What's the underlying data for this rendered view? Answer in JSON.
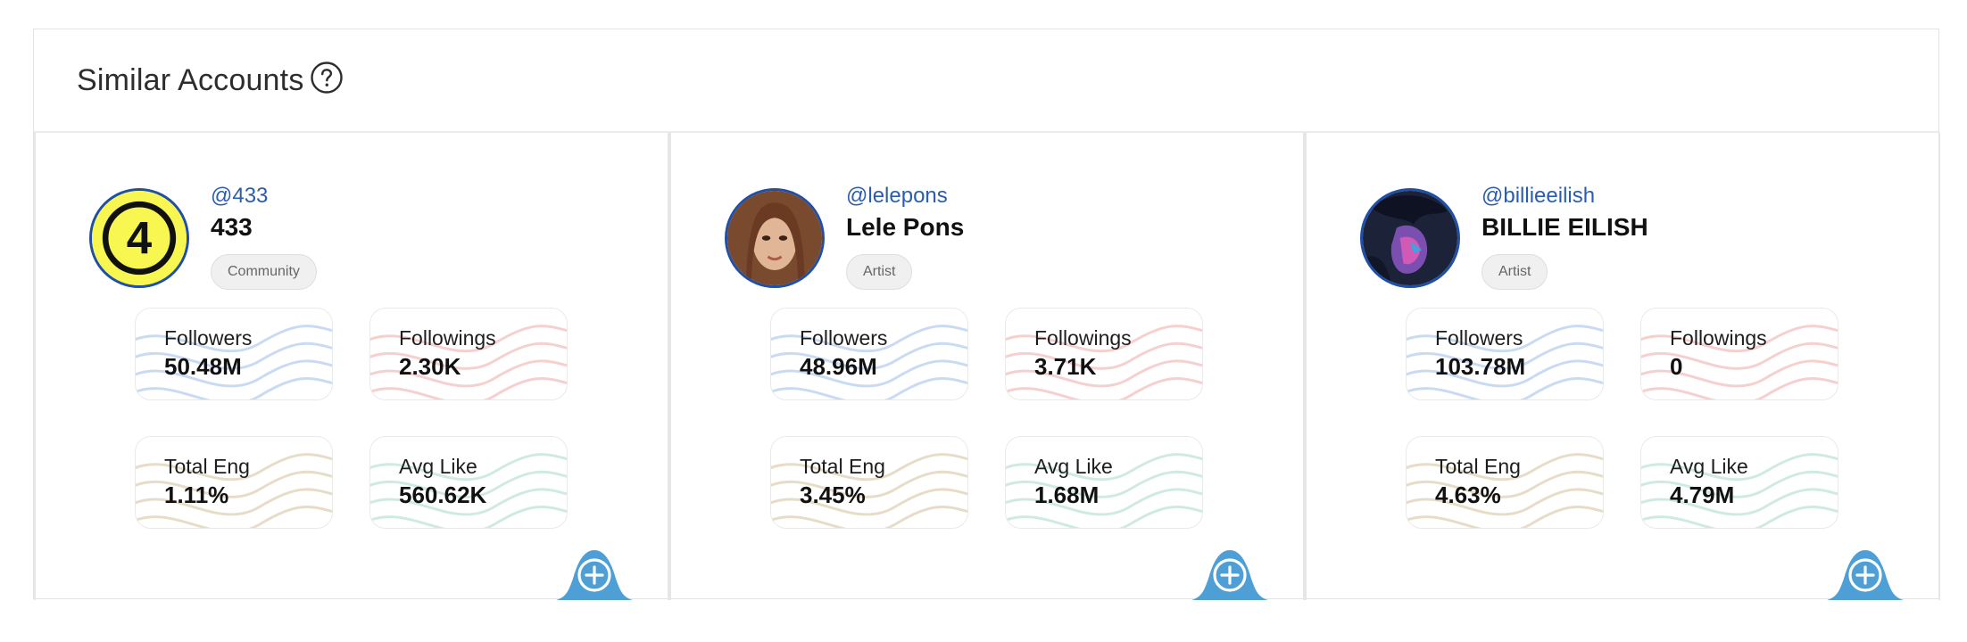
{
  "header": {
    "title": "Similar Accounts",
    "help_icon": "question-circle-icon"
  },
  "colors": {
    "handle": "#2a5db0",
    "avatar_ring": "#1f4fa6",
    "add_button": "#4e9fd6",
    "wave_followers": "#c9daf3",
    "wave_followings": "#f6cfcf",
    "wave_total_eng": "#e6dcc8",
    "wave_avg_like": "#cfeadf"
  },
  "cards": [
    {
      "handle": "@433",
      "name": "433",
      "category": "Community",
      "stats": {
        "followers_label": "Followers",
        "followers": "50.48M",
        "followings_label": "Followings",
        "followings": "2.30K",
        "total_eng_label": "Total Eng",
        "total_eng": "1.11%",
        "avg_like_label": "Avg Like",
        "avg_like": "560.62K"
      },
      "add_icon": "plus-circle-icon"
    },
    {
      "handle": "@lelepons",
      "name": "Lele Pons",
      "category": "Artist",
      "stats": {
        "followers_label": "Followers",
        "followers": "48.96M",
        "followings_label": "Followings",
        "followings": "3.71K",
        "total_eng_label": "Total Eng",
        "total_eng": "3.45%",
        "avg_like_label": "Avg Like",
        "avg_like": "1.68M"
      },
      "add_icon": "plus-circle-icon"
    },
    {
      "handle": "@billieeilish",
      "name": "BILLIE EILISH",
      "category": "Artist",
      "stats": {
        "followers_label": "Followers",
        "followers": "103.78M",
        "followings_label": "Followings",
        "followings": "0",
        "total_eng_label": "Total Eng",
        "total_eng": "4.63%",
        "avg_like_label": "Avg Like",
        "avg_like": "4.79M"
      },
      "add_icon": "plus-circle-icon"
    }
  ]
}
